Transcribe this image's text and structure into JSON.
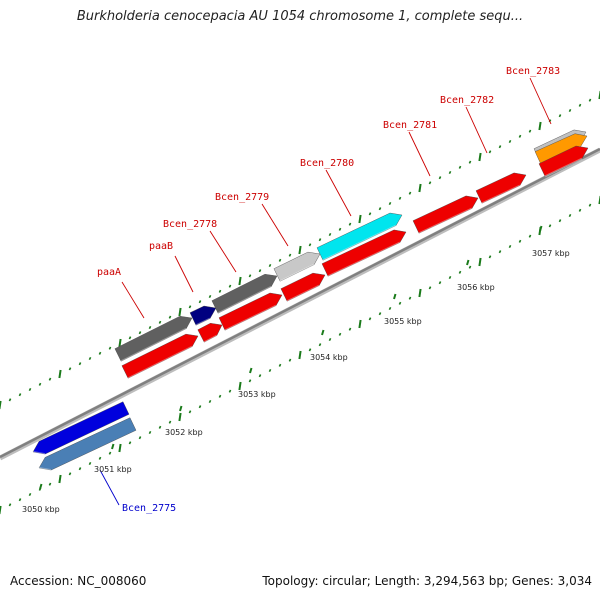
{
  "title": "Burkholderia cenocepacia AU 1054 chromosome 1, complete sequ...",
  "footer": {
    "accession": "Accession: NC_008060",
    "summary": "Topology: circular; Length: 3,294,563 bp; Genes: 3,034"
  },
  "colors": {
    "backbone": "#808080",
    "tick": "#1a7a1a",
    "forward_label": "#cc0000",
    "reverse_label": "#0000cc"
  },
  "scale_labels": [
    "3050 kbp",
    "3051 kbp",
    "3052 kbp",
    "3053 kbp",
    "3054 kbp",
    "3055 kbp",
    "3056 kbp",
    "3057 kbp"
  ],
  "genes": [
    {
      "name": "Bcen_2775",
      "strand": "reverse",
      "color": "#4a7fb5"
    },
    {
      "name": "",
      "strand": "reverse",
      "color": "#0000dd"
    },
    {
      "name": "paaA",
      "strand": "forward",
      "color": "#606060"
    },
    {
      "name": "paaB",
      "strand": "forward",
      "color": "#000080"
    },
    {
      "name": "Bcen_2778",
      "strand": "forward",
      "color": "#606060"
    },
    {
      "name": "Bcen_2779",
      "strand": "forward",
      "color": "#c8c8c8"
    },
    {
      "name": "Bcen_2780",
      "strand": "forward",
      "color": "#00e5ee"
    },
    {
      "name": "Bcen_2781",
      "strand": "forward",
      "color": "#ee0000"
    },
    {
      "name": "Bcen_2782",
      "strand": "forward",
      "color": "#ee0000"
    },
    {
      "name": "Bcen_2783",
      "strand": "forward",
      "color": "#c0c0c0"
    },
    {
      "name": "",
      "strand": "forward",
      "color": "#ff9900"
    }
  ],
  "cds_color": "#ee0000"
}
